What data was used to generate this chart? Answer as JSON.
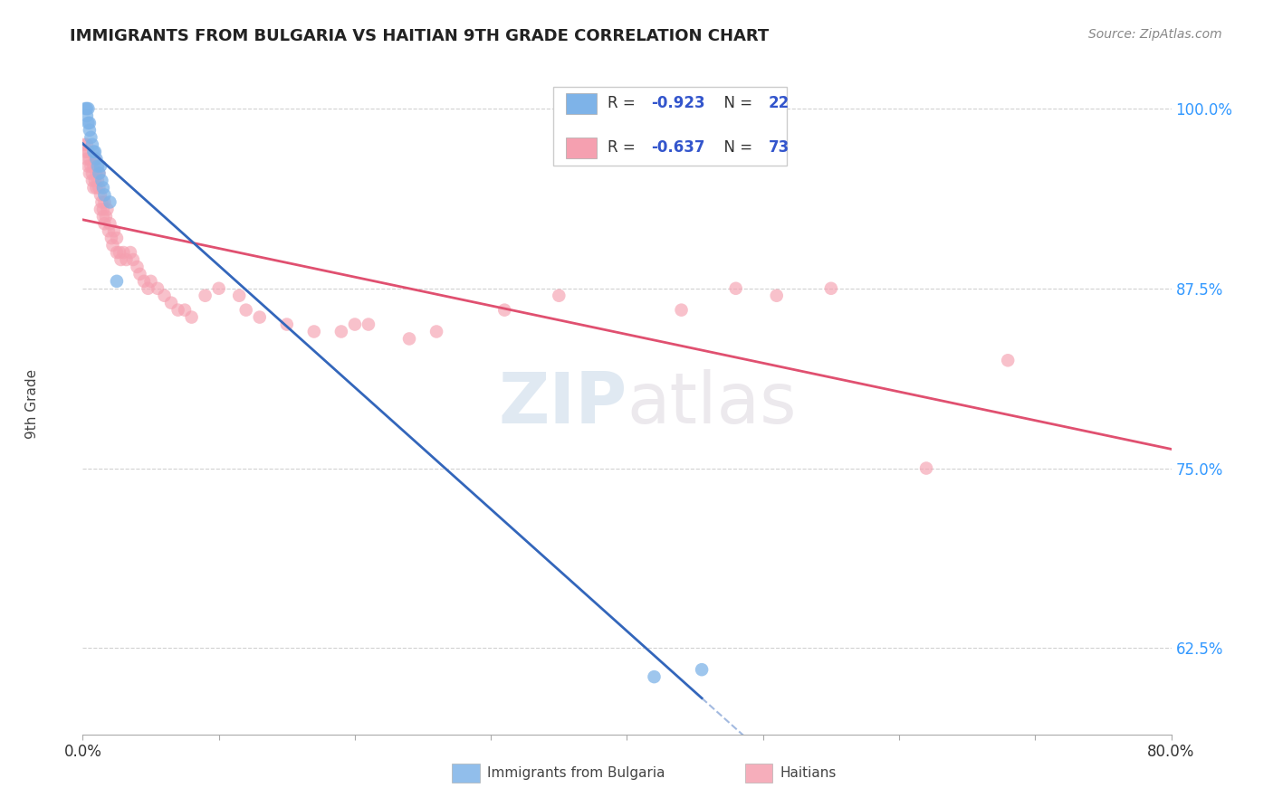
{
  "title": "IMMIGRANTS FROM BULGARIA VS HAITIAN 9TH GRADE CORRELATION CHART",
  "source": "Source: ZipAtlas.com",
  "ylabel": "9th Grade",
  "yticks": [
    0.625,
    0.75,
    0.875,
    1.0
  ],
  "ytick_labels": [
    "62.5%",
    "75.0%",
    "87.5%",
    "100.0%"
  ],
  "xmin": 0.0,
  "xmax": 0.8,
  "ymin": 0.565,
  "ymax": 1.025,
  "legend_blue_R": "-0.923",
  "legend_blue_N": "22",
  "legend_pink_R": "-0.637",
  "legend_pink_N": "73",
  "blue_color": "#7EB3E8",
  "pink_color": "#F5A0B0",
  "blue_line_color": "#3366BB",
  "pink_line_color": "#E05070",
  "blue_scatter_x": [
    0.002,
    0.003,
    0.003,
    0.004,
    0.004,
    0.005,
    0.005,
    0.006,
    0.007,
    0.008,
    0.009,
    0.01,
    0.011,
    0.012,
    0.013,
    0.014,
    0.015,
    0.016,
    0.02,
    0.025,
    0.42,
    0.455
  ],
  "blue_scatter_y": [
    1.0,
    1.0,
    0.995,
    1.0,
    0.99,
    0.99,
    0.985,
    0.98,
    0.975,
    0.97,
    0.97,
    0.965,
    0.96,
    0.955,
    0.96,
    0.95,
    0.945,
    0.94,
    0.935,
    0.88,
    0.605,
    0.61
  ],
  "pink_scatter_x": [
    0.001,
    0.002,
    0.003,
    0.003,
    0.004,
    0.004,
    0.005,
    0.005,
    0.006,
    0.007,
    0.007,
    0.008,
    0.008,
    0.009,
    0.009,
    0.01,
    0.01,
    0.011,
    0.012,
    0.012,
    0.013,
    0.013,
    0.014,
    0.015,
    0.015,
    0.016,
    0.016,
    0.017,
    0.018,
    0.019,
    0.02,
    0.021,
    0.022,
    0.023,
    0.025,
    0.025,
    0.027,
    0.028,
    0.03,
    0.032,
    0.035,
    0.037,
    0.04,
    0.042,
    0.045,
    0.048,
    0.05,
    0.055,
    0.06,
    0.065,
    0.07,
    0.075,
    0.08,
    0.09,
    0.1,
    0.115,
    0.12,
    0.13,
    0.15,
    0.17,
    0.19,
    0.2,
    0.21,
    0.24,
    0.26,
    0.31,
    0.35,
    0.44,
    0.48,
    0.51,
    0.55,
    0.62,
    0.68
  ],
  "pink_scatter_y": [
    0.975,
    0.97,
    0.975,
    0.965,
    0.97,
    0.96,
    0.965,
    0.955,
    0.96,
    0.955,
    0.95,
    0.96,
    0.945,
    0.95,
    0.965,
    0.955,
    0.945,
    0.95,
    0.945,
    0.955,
    0.94,
    0.93,
    0.935,
    0.93,
    0.925,
    0.935,
    0.92,
    0.925,
    0.93,
    0.915,
    0.92,
    0.91,
    0.905,
    0.915,
    0.91,
    0.9,
    0.9,
    0.895,
    0.9,
    0.895,
    0.9,
    0.895,
    0.89,
    0.885,
    0.88,
    0.875,
    0.88,
    0.875,
    0.87,
    0.865,
    0.86,
    0.86,
    0.855,
    0.87,
    0.875,
    0.87,
    0.86,
    0.855,
    0.85,
    0.845,
    0.845,
    0.85,
    0.85,
    0.84,
    0.845,
    0.86,
    0.87,
    0.86,
    0.875,
    0.87,
    0.875,
    0.75,
    0.825
  ]
}
